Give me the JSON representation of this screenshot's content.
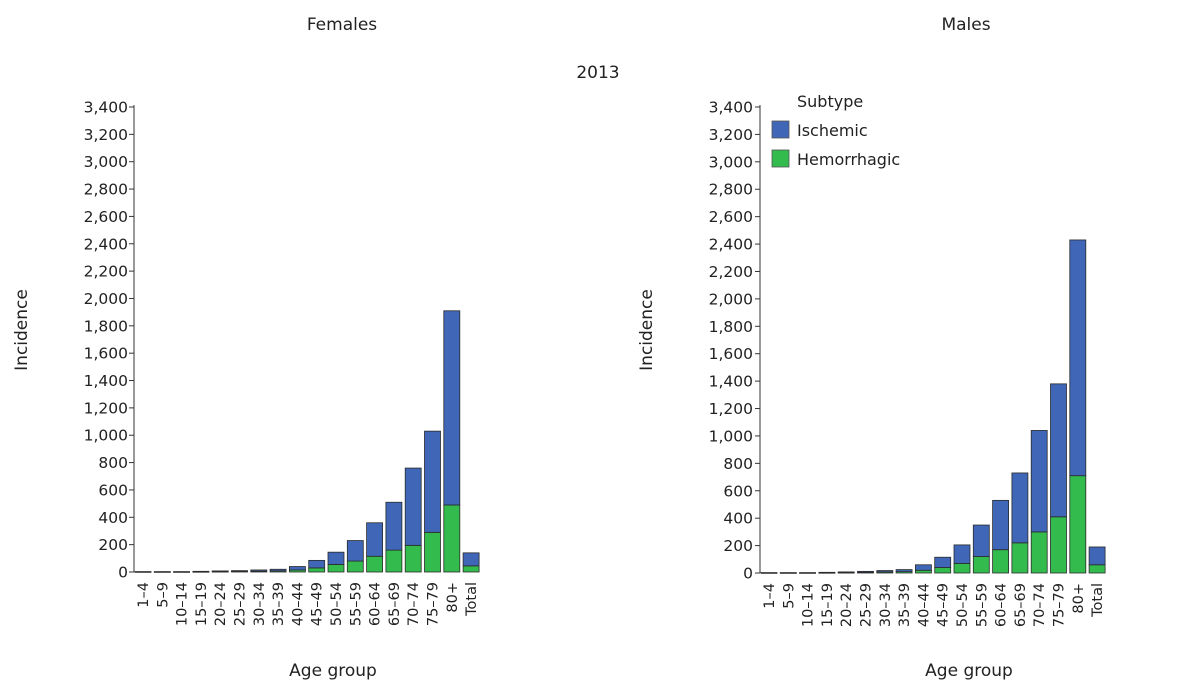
{
  "figure": {
    "year_label": "2013"
  },
  "legend": {
    "title": "Subtype",
    "items": [
      {
        "label": "Ischemic",
        "color": "#3f66b7"
      },
      {
        "label": "Hemorrhagic",
        "color": "#33bb4e"
      }
    ]
  },
  "chart_data": [
    {
      "type": "bar",
      "stacked": true,
      "title": "Females",
      "xlabel": "Age group",
      "ylabel": "Incidence",
      "ylim": [
        0,
        3400
      ],
      "yticks": [
        0,
        200,
        400,
        600,
        800,
        1000,
        1200,
        1400,
        1600,
        1800,
        2000,
        2200,
        2400,
        2600,
        2800,
        3000,
        3200,
        3400
      ],
      "ytick_labels": [
        "0",
        "200",
        "400",
        "600",
        "800",
        "1,000",
        "1,200",
        "1,400",
        "1,600",
        "1,800",
        "2,000",
        "2,200",
        "2,400",
        "2,600",
        "2,800",
        "3,000",
        "3,200",
        "3,400"
      ],
      "categories": [
        "1–4",
        "5–9",
        "10–14",
        "15–19",
        "20–24",
        "25–29",
        "30–34",
        "35–39",
        "40–44",
        "45–49",
        "50–54",
        "55–59",
        "60–64",
        "65–69",
        "70–74",
        "75–79",
        "80+",
        "Total"
      ],
      "series": [
        {
          "name": "Hemorrhagic",
          "color": "#33bb4e",
          "values": [
            1,
            1,
            1,
            2,
            3,
            4,
            6,
            8,
            15,
            30,
            55,
            80,
            115,
            160,
            195,
            290,
            490,
            45
          ]
        },
        {
          "name": "Ischemic",
          "color": "#3f66b7",
          "values": [
            2,
            2,
            2,
            3,
            5,
            6,
            9,
            12,
            25,
            55,
            90,
            150,
            245,
            350,
            565,
            740,
            1420,
            95
          ]
        }
      ]
    },
    {
      "type": "bar",
      "stacked": true,
      "title": "Males",
      "xlabel": "Age group",
      "ylabel": "Incidence",
      "ylim": [
        0,
        3400
      ],
      "yticks": [
        0,
        200,
        400,
        600,
        800,
        1000,
        1200,
        1400,
        1600,
        1800,
        2000,
        2200,
        2400,
        2600,
        2800,
        3000,
        3200,
        3400
      ],
      "ytick_labels": [
        "0",
        "200",
        "400",
        "600",
        "800",
        "1,000",
        "1,200",
        "1,400",
        "1,600",
        "1,800",
        "2,000",
        "2,200",
        "2,400",
        "2,600",
        "2,800",
        "3,000",
        "3,200",
        "3,400"
      ],
      "categories": [
        "1–4",
        "5–9",
        "10–14",
        "15–19",
        "20–24",
        "25–29",
        "30–34",
        "35–39",
        "40–44",
        "45–49",
        "50–54",
        "55–59",
        "60–64",
        "65–69",
        "70–74",
        "75–79",
        "80+",
        "Total"
      ],
      "series": [
        {
          "name": "Hemorrhagic",
          "color": "#33bb4e",
          "values": [
            1,
            1,
            1,
            2,
            3,
            5,
            8,
            10,
            20,
            40,
            70,
            120,
            170,
            220,
            300,
            410,
            710,
            60
          ]
        },
        {
          "name": "Ischemic",
          "color": "#3f66b7",
          "values": [
            2,
            2,
            2,
            3,
            5,
            7,
            10,
            15,
            40,
            75,
            135,
            230,
            360,
            510,
            740,
            970,
            1720,
            130
          ]
        }
      ]
    }
  ]
}
